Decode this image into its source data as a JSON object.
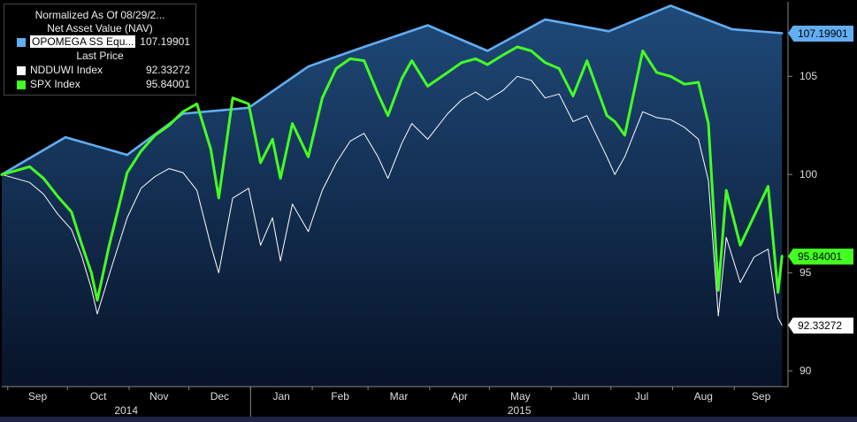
{
  "legend": {
    "title": "Normalized As Of 08/29/2...",
    "group1": "Net Asset Value (NAV)",
    "group2": "Last Price",
    "items": [
      {
        "name": "OPOMEGA SS Equ...",
        "value": "107.19901",
        "color": "#62aef2"
      },
      {
        "name": "NDDUWI Index",
        "value": "92.33272",
        "color": "#ffffff"
      },
      {
        "name": "SPX Index",
        "value": "95.84001",
        "color": "#44ff22"
      }
    ]
  },
  "last_value_labels": [
    {
      "text": "107.19901",
      "color": "#62aef2",
      "y": 107.19901
    },
    {
      "text": "95.84001",
      "color": "#44ff22",
      "y": 95.84001
    },
    {
      "text": "92.33272",
      "color": "#ffffff",
      "y": 92.33272
    }
  ],
  "chart_data": {
    "type": "line",
    "x_axis": {
      "ticks": [
        "Sep",
        "Oct",
        "Nov",
        "Dec",
        "Jan",
        "Feb",
        "Mar",
        "Apr",
        "May",
        "Jun",
        "Jul",
        "Aug",
        "Sep"
      ],
      "years": [
        "2014",
        "2015"
      ]
    },
    "y_axis": {
      "ticks": [
        90,
        95,
        100,
        105
      ],
      "range": [
        89.2,
        108.8
      ],
      "position": "right"
    },
    "grid": false,
    "legend_position": "top-left",
    "series": [
      {
        "name": "OPOMEGA SS Equ...",
        "style": "nav-step",
        "x": [
          "2014-08-29",
          "2014-09-30",
          "2014-10-31",
          "2014-11-28",
          "2014-12-31",
          "2015-01-30",
          "2015-02-27",
          "2015-03-31",
          "2015-04-30",
          "2015-05-29",
          "2015-06-30",
          "2015-07-31",
          "2015-08-31",
          "2015-09-25"
        ],
        "y": [
          100,
          101.9,
          101.0,
          103.1,
          103.4,
          105.5,
          106.5,
          107.6,
          106.3,
          107.9,
          107.3,
          108.6,
          107.4,
          107.2
        ]
      },
      {
        "name": "NDDUWI Index",
        "style": "thin",
        "x": [
          "2014-08-29",
          "2014-09-05",
          "2014-09-12",
          "2014-09-19",
          "2014-09-26",
          "2014-10-03",
          "2014-10-08",
          "2014-10-13",
          "2014-10-16",
          "2014-10-22",
          "2014-10-31",
          "2014-11-07",
          "2014-11-14",
          "2014-11-21",
          "2014-11-28",
          "2014-12-05",
          "2014-12-12",
          "2014-12-16",
          "2014-12-23",
          "2014-12-31",
          "2015-01-06",
          "2015-01-12",
          "2015-01-16",
          "2015-01-22",
          "2015-01-30",
          "2015-02-06",
          "2015-02-13",
          "2015-02-20",
          "2015-02-27",
          "2015-03-06",
          "2015-03-11",
          "2015-03-18",
          "2015-03-23",
          "2015-03-31",
          "2015-04-10",
          "2015-04-17",
          "2015-04-24",
          "2015-04-30",
          "2015-05-08",
          "2015-05-15",
          "2015-05-22",
          "2015-05-29",
          "2015-06-05",
          "2015-06-12",
          "2015-06-19",
          "2015-06-29",
          "2015-07-03",
          "2015-07-08",
          "2015-07-17",
          "2015-07-24",
          "2015-07-31",
          "2015-08-07",
          "2015-08-14",
          "2015-08-19",
          "2015-08-24",
          "2015-08-28",
          "2015-09-04",
          "2015-09-11",
          "2015-09-18",
          "2015-09-23",
          "2015-09-25"
        ],
        "y": [
          100,
          99.8,
          99.6,
          99.0,
          98.0,
          97.2,
          95.9,
          94.2,
          92.9,
          94.9,
          97.8,
          99.3,
          99.9,
          100.3,
          100.1,
          99.2,
          96.4,
          95.0,
          98.8,
          99.3,
          96.4,
          97.8,
          95.6,
          98.5,
          97.1,
          99.2,
          100.6,
          101.7,
          102.1,
          100.9,
          99.8,
          101.6,
          102.6,
          101.8,
          103.1,
          103.8,
          104.2,
          103.8,
          104.3,
          105.0,
          104.8,
          103.9,
          104.1,
          102.7,
          103.0,
          100.9,
          100.0,
          100.9,
          103.2,
          102.9,
          102.8,
          102.4,
          101.8,
          99.7,
          92.8,
          96.8,
          94.5,
          95.8,
          96.2,
          92.7,
          92.33272
        ]
      },
      {
        "name": "SPX Index",
        "style": "thick",
        "x": [
          "2014-08-29",
          "2014-09-05",
          "2014-09-12",
          "2014-09-19",
          "2014-09-26",
          "2014-10-03",
          "2014-10-08",
          "2014-10-13",
          "2014-10-16",
          "2014-10-22",
          "2014-10-31",
          "2014-11-07",
          "2014-11-14",
          "2014-11-21",
          "2014-11-28",
          "2014-12-05",
          "2014-12-12",
          "2014-12-16",
          "2014-12-23",
          "2014-12-31",
          "2015-01-06",
          "2015-01-12",
          "2015-01-16",
          "2015-01-22",
          "2015-01-30",
          "2015-02-06",
          "2015-02-13",
          "2015-02-20",
          "2015-02-27",
          "2015-03-06",
          "2015-03-11",
          "2015-03-18",
          "2015-03-23",
          "2015-03-31",
          "2015-04-10",
          "2015-04-17",
          "2015-04-24",
          "2015-04-30",
          "2015-05-08",
          "2015-05-15",
          "2015-05-22",
          "2015-05-29",
          "2015-06-05",
          "2015-06-12",
          "2015-06-19",
          "2015-06-29",
          "2015-07-03",
          "2015-07-08",
          "2015-07-17",
          "2015-07-24",
          "2015-07-31",
          "2015-08-07",
          "2015-08-14",
          "2015-08-19",
          "2015-08-24",
          "2015-08-28",
          "2015-09-04",
          "2015-09-11",
          "2015-09-18",
          "2015-09-23",
          "2015-09-25"
        ],
        "y": [
          100,
          100.2,
          100.4,
          99.8,
          98.9,
          98.1,
          96.5,
          95.0,
          93.6,
          96.4,
          100.1,
          101.2,
          102.0,
          102.5,
          103.2,
          103.6,
          101.3,
          98.8,
          103.9,
          103.6,
          100.6,
          101.8,
          99.8,
          102.6,
          100.9,
          103.9,
          105.4,
          105.9,
          105.8,
          104.1,
          103.0,
          104.9,
          105.8,
          104.5,
          105.2,
          105.7,
          105.9,
          105.6,
          106.1,
          106.5,
          106.3,
          105.7,
          105.4,
          104.0,
          105.8,
          103.0,
          102.7,
          102.0,
          106.3,
          105.2,
          105.0,
          104.6,
          104.7,
          102.6,
          94.1,
          99.2,
          96.4,
          97.9,
          99.4,
          94.0,
          95.84001
        ]
      }
    ]
  }
}
